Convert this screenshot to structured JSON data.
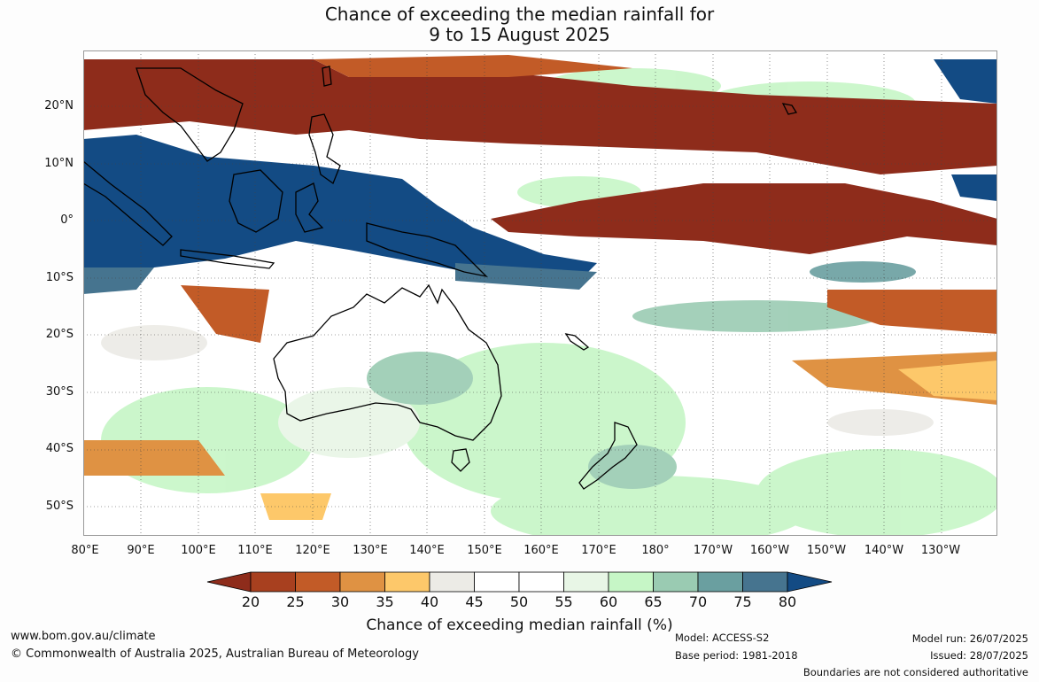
{
  "title": {
    "line1": "Chance of exceeding the median rainfall for",
    "line2": "9 to 15 August 2025"
  },
  "lat_labels": [
    "20°N",
    "10°N",
    "0°",
    "10°S",
    "20°S",
    "30°S",
    "40°S",
    "50°S"
  ],
  "lon_labels": [
    "80°E",
    "90°E",
    "100°E",
    "110°E",
    "120°E",
    "130°E",
    "140°E",
    "150°E",
    "160°E",
    "170°E",
    "180°",
    "170°W",
    "160°W",
    "150°W",
    "140°W",
    "130°W"
  ],
  "colorbar": {
    "labels": [
      "20",
      "25",
      "30",
      "35",
      "40",
      "45",
      "50",
      "55",
      "60",
      "65",
      "70",
      "75",
      "80"
    ],
    "colors": [
      "#8e2c1b",
      "#a8401f",
      "#c25b27",
      "#df9243",
      "#fdc86a",
      "#ecebe6",
      "#ffffff",
      "#ffffff",
      "#e8f6e6",
      "#c6f6c6",
      "#9acbb2",
      "#6a9fa0",
      "#46748f",
      "#134b84"
    ],
    "title": "Chance of exceeding median rainfall (%)"
  },
  "footer": {
    "url": "www.bom.gov.au/climate",
    "copyright": "© Commonwealth of Australia 2025, Australian Bureau of Meteorology",
    "model": "Model: ACCESS-S2",
    "base_period": "Base period: 1981-2018",
    "model_run": "Model run: 26/07/2025",
    "issued": "Issued: 28/07/2025",
    "disclaimer": "Boundaries are not considered authoritative"
  }
}
